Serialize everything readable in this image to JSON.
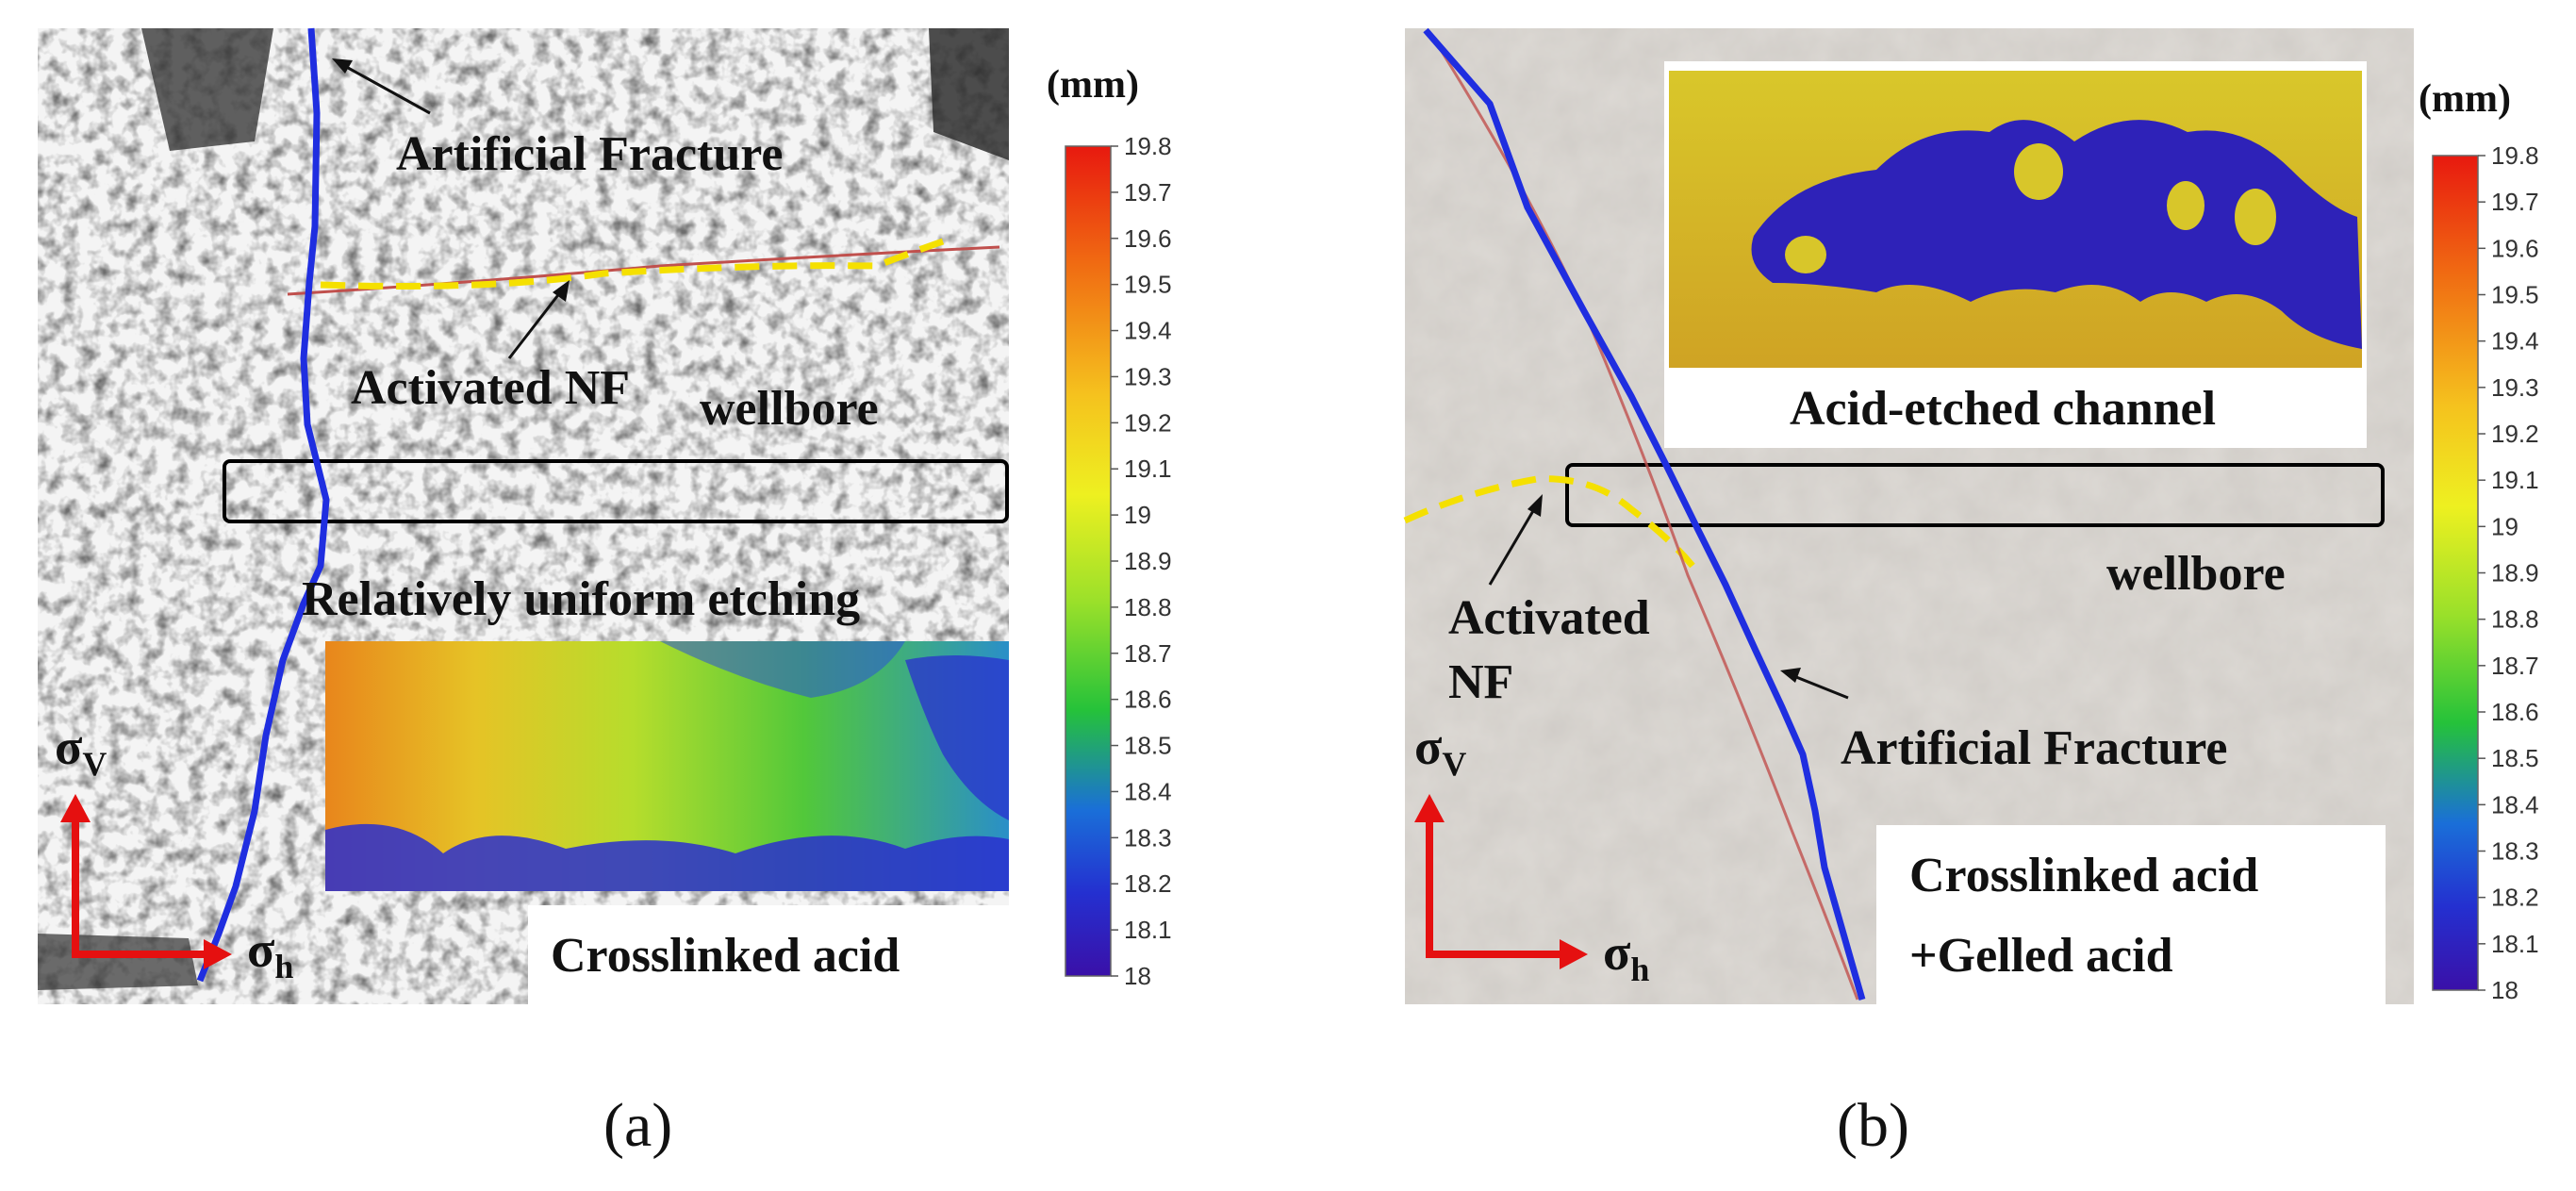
{
  "panel_a": {
    "caption": "(a)",
    "labels": {
      "artificial_fracture": "Artificial Fracture",
      "activated_nf": "Activated NF",
      "wellbore": "wellbore",
      "etching_note": "Relatively uniform etching",
      "treatment": "Crosslinked acid"
    },
    "axes": {
      "sigma": "σ",
      "vertical_sub": "V",
      "horizontal_sub": "h"
    },
    "colorbar": {
      "unit": "(mm)",
      "ticks": [
        "19.8",
        "19.7",
        "19.6",
        "19.5",
        "19.4",
        "19.3",
        "19.2",
        "19.1",
        "19",
        "18.9",
        "18.8",
        "18.7",
        "18.6",
        "18.5",
        "18.4",
        "18.3",
        "18.2",
        "18.1",
        "18"
      ],
      "min": 18,
      "max": 19.8
    }
  },
  "panel_b": {
    "caption": "(b)",
    "labels": {
      "acid_channel": "Acid-etched channel",
      "wellbore": "wellbore",
      "activated": "Activated",
      "nf": "NF",
      "artificial_fracture": "Artificial Fracture",
      "treatment_line1": "Crosslinked acid",
      "treatment_line2": "+Gelled acid"
    },
    "axes": {
      "sigma": "σ",
      "vertical_sub": "V",
      "horizontal_sub": "h"
    },
    "colorbar": {
      "unit": "(mm)",
      "ticks": [
        "19.8",
        "19.7",
        "19.6",
        "19.5",
        "19.4",
        "19.3",
        "19.2",
        "19.1",
        "19",
        "18.9",
        "18.8",
        "18.7",
        "18.6",
        "18.5",
        "18.4",
        "18.3",
        "18.2",
        "18.1",
        "18"
      ],
      "min": 18,
      "max": 19.8
    }
  },
  "colors": {
    "fracture_line": "#1f2ee0",
    "nf_dash": "#f5e000",
    "stress_arrow": "#e51010",
    "wellbore_box": "#000000"
  }
}
